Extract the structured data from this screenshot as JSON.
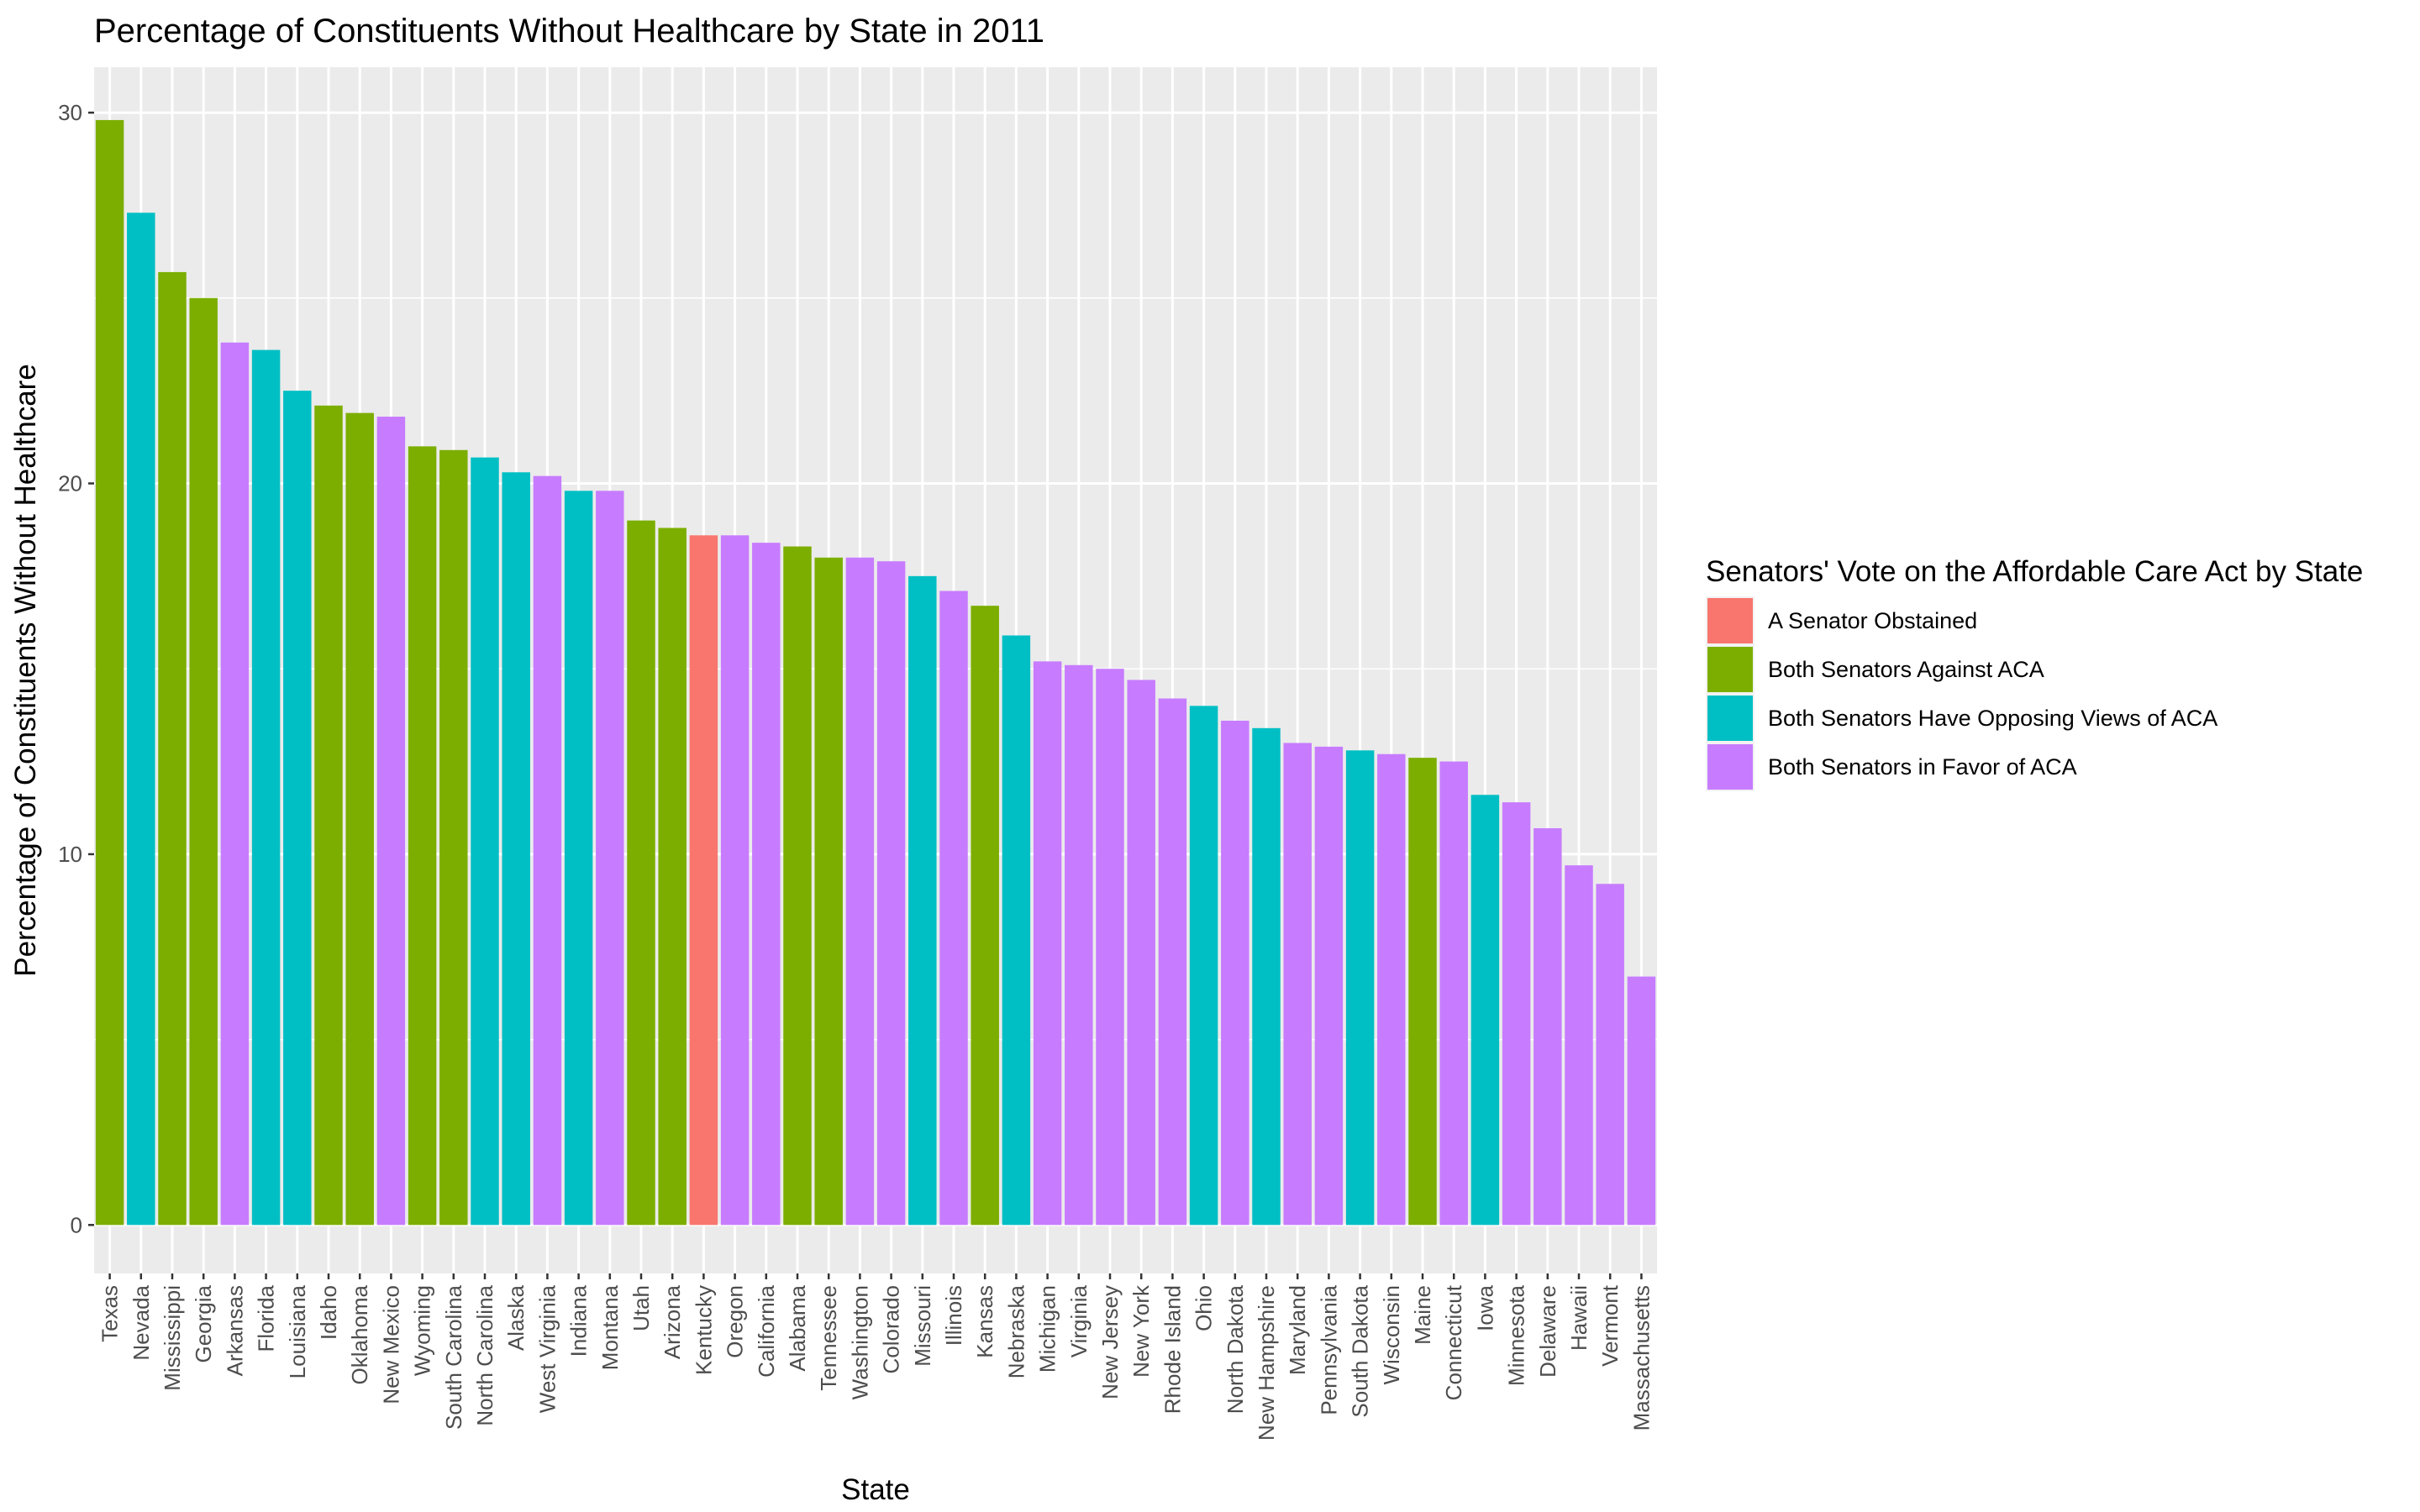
{
  "chart_data": {
    "type": "bar",
    "title": "Percentage of Constituents Without Healthcare by State in 2011",
    "xlabel": "State",
    "ylabel": "Percentage of Constituents Without Healthcare",
    "ylim": [
      -1.5,
      31.3
    ],
    "yticks": [
      0,
      10,
      20,
      30
    ],
    "grid": true,
    "legend": {
      "title": "Senators' Vote on the Affordable Care Act by State",
      "placement": "right",
      "entries": [
        {
          "label": "A Senator Obstained",
          "color": "#F8766D"
        },
        {
          "label": "Both Senators Against ACA",
          "color": "#7CAE00"
        },
        {
          "label": "Both Senators Have Opposing Views of ACA",
          "color": "#00BFC4"
        },
        {
          "label": "Both Senators in Favor of ACA",
          "color": "#C77CFF"
        }
      ]
    },
    "categories": [
      "Texas",
      "Nevada",
      "Mississippi",
      "Georgia",
      "Arkansas",
      "Florida",
      "Louisiana",
      "Idaho",
      "Oklahoma",
      "New Mexico",
      "Wyoming",
      "South Carolina",
      "North Carolina",
      "Alaska",
      "West Virginia",
      "Indiana",
      "Montana",
      "Utah",
      "Arizona",
      "Kentucky",
      "Oregon",
      "California",
      "Alabama",
      "Tennessee",
      "Washington",
      "Colorado",
      "Missouri",
      "Illinois",
      "Kansas",
      "Nebraska",
      "Michigan",
      "Virginia",
      "New Jersey",
      "New York",
      "Rhode Island",
      "Ohio",
      "North Dakota",
      "New Hampshire",
      "Maryland",
      "Pennsylvania",
      "South Dakota",
      "Wisconsin",
      "Maine",
      "Connecticut",
      "Iowa",
      "Minnesota",
      "Delaware",
      "Hawaii",
      "Vermont",
      "Massachusetts"
    ],
    "values": [
      29.8,
      27.3,
      25.7,
      25.0,
      23.8,
      23.6,
      22.5,
      22.1,
      21.9,
      21.8,
      21.0,
      20.9,
      20.7,
      20.3,
      20.2,
      19.8,
      19.8,
      19.0,
      18.8,
      18.6,
      18.6,
      18.4,
      18.3,
      18.0,
      18.0,
      17.9,
      17.5,
      17.1,
      16.7,
      15.9,
      15.2,
      15.1,
      15.0,
      14.7,
      14.2,
      14.0,
      13.6,
      13.4,
      13.0,
      12.9,
      12.8,
      12.7,
      12.6,
      12.5,
      11.6,
      11.4,
      10.7,
      9.7,
      9.2,
      6.7
    ],
    "groups": [
      1,
      2,
      1,
      1,
      3,
      2,
      2,
      1,
      1,
      3,
      1,
      1,
      2,
      2,
      3,
      2,
      3,
      1,
      1,
      0,
      3,
      3,
      1,
      1,
      3,
      3,
      2,
      3,
      1,
      2,
      3,
      3,
      3,
      3,
      3,
      2,
      3,
      2,
      3,
      3,
      2,
      3,
      1,
      3,
      2,
      3,
      3,
      3,
      3,
      3
    ]
  }
}
